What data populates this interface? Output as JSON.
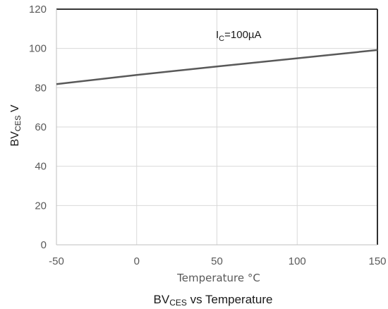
{
  "chart_data": {
    "type": "line",
    "title_main": "BV",
    "title_sub": "CES",
    "title_rest": " vs Temperature",
    "xlabel": "Temperature °C",
    "ylabel_main": "BV",
    "ylabel_sub": "CES",
    "ylabel_rest": " V",
    "xlim": [
      -50,
      150
    ],
    "ylim": [
      0,
      120
    ],
    "xticks": [
      -50,
      0,
      50,
      100,
      150
    ],
    "yticks": [
      0,
      20,
      40,
      60,
      80,
      100,
      120
    ],
    "grid": true,
    "annotation": {
      "main": "I",
      "sub": "C",
      "rest": "=100µA",
      "x": 66,
      "y": 104
    },
    "series": [
      {
        "x": [
          -50,
          0,
          50,
          100,
          150
        ],
        "y": [
          81.8,
          86.5,
          90.8,
          95.0,
          99.2
        ],
        "color": "#595959"
      }
    ]
  }
}
